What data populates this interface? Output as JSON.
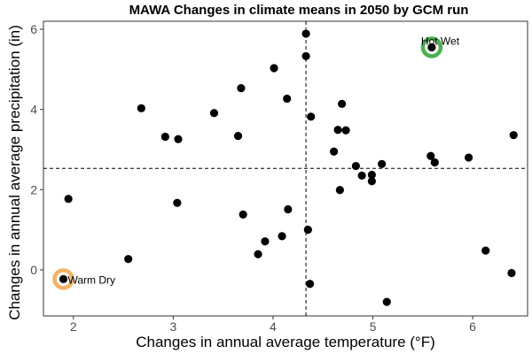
{
  "chart_data": {
    "type": "scatter",
    "title": "MAWA Changes in climate means in 2050 by GCM run",
    "xlabel": "Changes in annual average temperature (°F)",
    "ylabel": "Changes in annual average precipitation (in)",
    "xlim": [
      1.7,
      6.55
    ],
    "ylim": [
      -1.15,
      6.2
    ],
    "xticks": [
      2,
      3,
      4,
      5,
      6
    ],
    "yticks": [
      0,
      2,
      4,
      6
    ],
    "grid": false,
    "reference_lines": {
      "x": 4.33,
      "y": 2.53,
      "style": "dashed"
    },
    "points": [
      {
        "x": 1.95,
        "y": 1.77
      },
      {
        "x": 2.55,
        "y": 0.27
      },
      {
        "x": 2.68,
        "y": 4.03
      },
      {
        "x": 2.92,
        "y": 3.32
      },
      {
        "x": 3.04,
        "y": 1.67
      },
      {
        "x": 3.05,
        "y": 3.26
      },
      {
        "x": 3.41,
        "y": 3.91
      },
      {
        "x": 3.65,
        "y": 3.34
      },
      {
        "x": 3.68,
        "y": 4.53
      },
      {
        "x": 3.7,
        "y": 1.38
      },
      {
        "x": 3.85,
        "y": 0.39
      },
      {
        "x": 3.92,
        "y": 0.71
      },
      {
        "x": 4.01,
        "y": 5.03
      },
      {
        "x": 4.09,
        "y": 0.84
      },
      {
        "x": 4.14,
        "y": 4.27
      },
      {
        "x": 4.15,
        "y": 1.51
      },
      {
        "x": 4.33,
        "y": 5.89
      },
      {
        "x": 4.33,
        "y": 5.33
      },
      {
        "x": 4.35,
        "y": 1.0
      },
      {
        "x": 4.37,
        "y": -0.35
      },
      {
        "x": 4.38,
        "y": 3.82
      },
      {
        "x": 4.61,
        "y": 2.95
      },
      {
        "x": 4.65,
        "y": 3.49
      },
      {
        "x": 4.67,
        "y": 1.99
      },
      {
        "x": 4.69,
        "y": 4.14
      },
      {
        "x": 4.73,
        "y": 3.48
      },
      {
        "x": 4.83,
        "y": 2.59
      },
      {
        "x": 4.89,
        "y": 2.35
      },
      {
        "x": 4.99,
        "y": 2.37
      },
      {
        "x": 4.99,
        "y": 2.21
      },
      {
        "x": 5.09,
        "y": 2.64
      },
      {
        "x": 5.14,
        "y": -0.8
      },
      {
        "x": 5.58,
        "y": 2.84
      },
      {
        "x": 5.59,
        "y": 5.55
      },
      {
        "x": 5.62,
        "y": 2.68
      },
      {
        "x": 5.96,
        "y": 2.8
      },
      {
        "x": 6.13,
        "y": 0.48
      },
      {
        "x": 6.39,
        "y": -0.08
      },
      {
        "x": 6.41,
        "y": 3.36
      },
      {
        "x": 1.9,
        "y": -0.23
      }
    ],
    "annotations": [
      {
        "label": "Hot Wet",
        "x": 5.59,
        "y": 5.55,
        "ring_color": "#4caf50"
      },
      {
        "label": "Warm Dry",
        "x": 1.9,
        "y": -0.23,
        "ring_color": "#f4b266"
      }
    ]
  }
}
